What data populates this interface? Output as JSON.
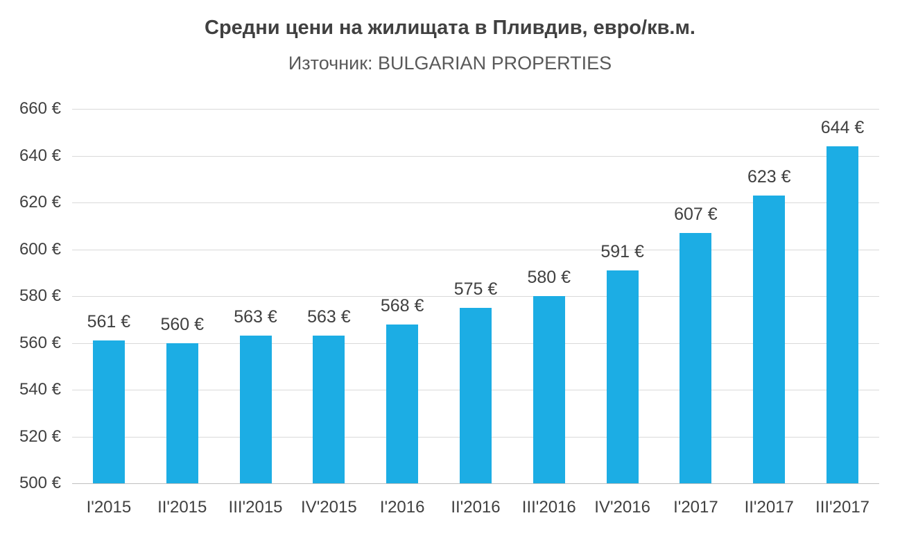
{
  "chart_data": {
    "type": "bar",
    "title": "Средни цени на жилищата в Пливдив, евро/кв.м.",
    "subtitle": "Източник: BULGARIAN PROPERTIES",
    "categories": [
      "I'2015",
      "II'2015",
      "III'2015",
      "IV'2015",
      "I'2016",
      "II'2016",
      "III'2016",
      "IV'2016",
      "I'2017",
      "II'2017",
      "III'2017"
    ],
    "values": [
      561,
      560,
      563,
      563,
      568,
      575,
      580,
      591,
      607,
      623,
      644
    ],
    "value_suffix": " €",
    "xlabel": "",
    "ylabel": "",
    "ylim": [
      500,
      660
    ],
    "ytick_step": 20,
    "ytick_labels": [
      "500 €",
      "520 €",
      "540 €",
      "560 €",
      "580 €",
      "600 €",
      "620 €",
      "640 €",
      "660 €"
    ],
    "grid": true,
    "legend": "none",
    "bar_color": "#1CADE4",
    "text_color": "#404040",
    "grid_color": "#D9D9D9"
  }
}
